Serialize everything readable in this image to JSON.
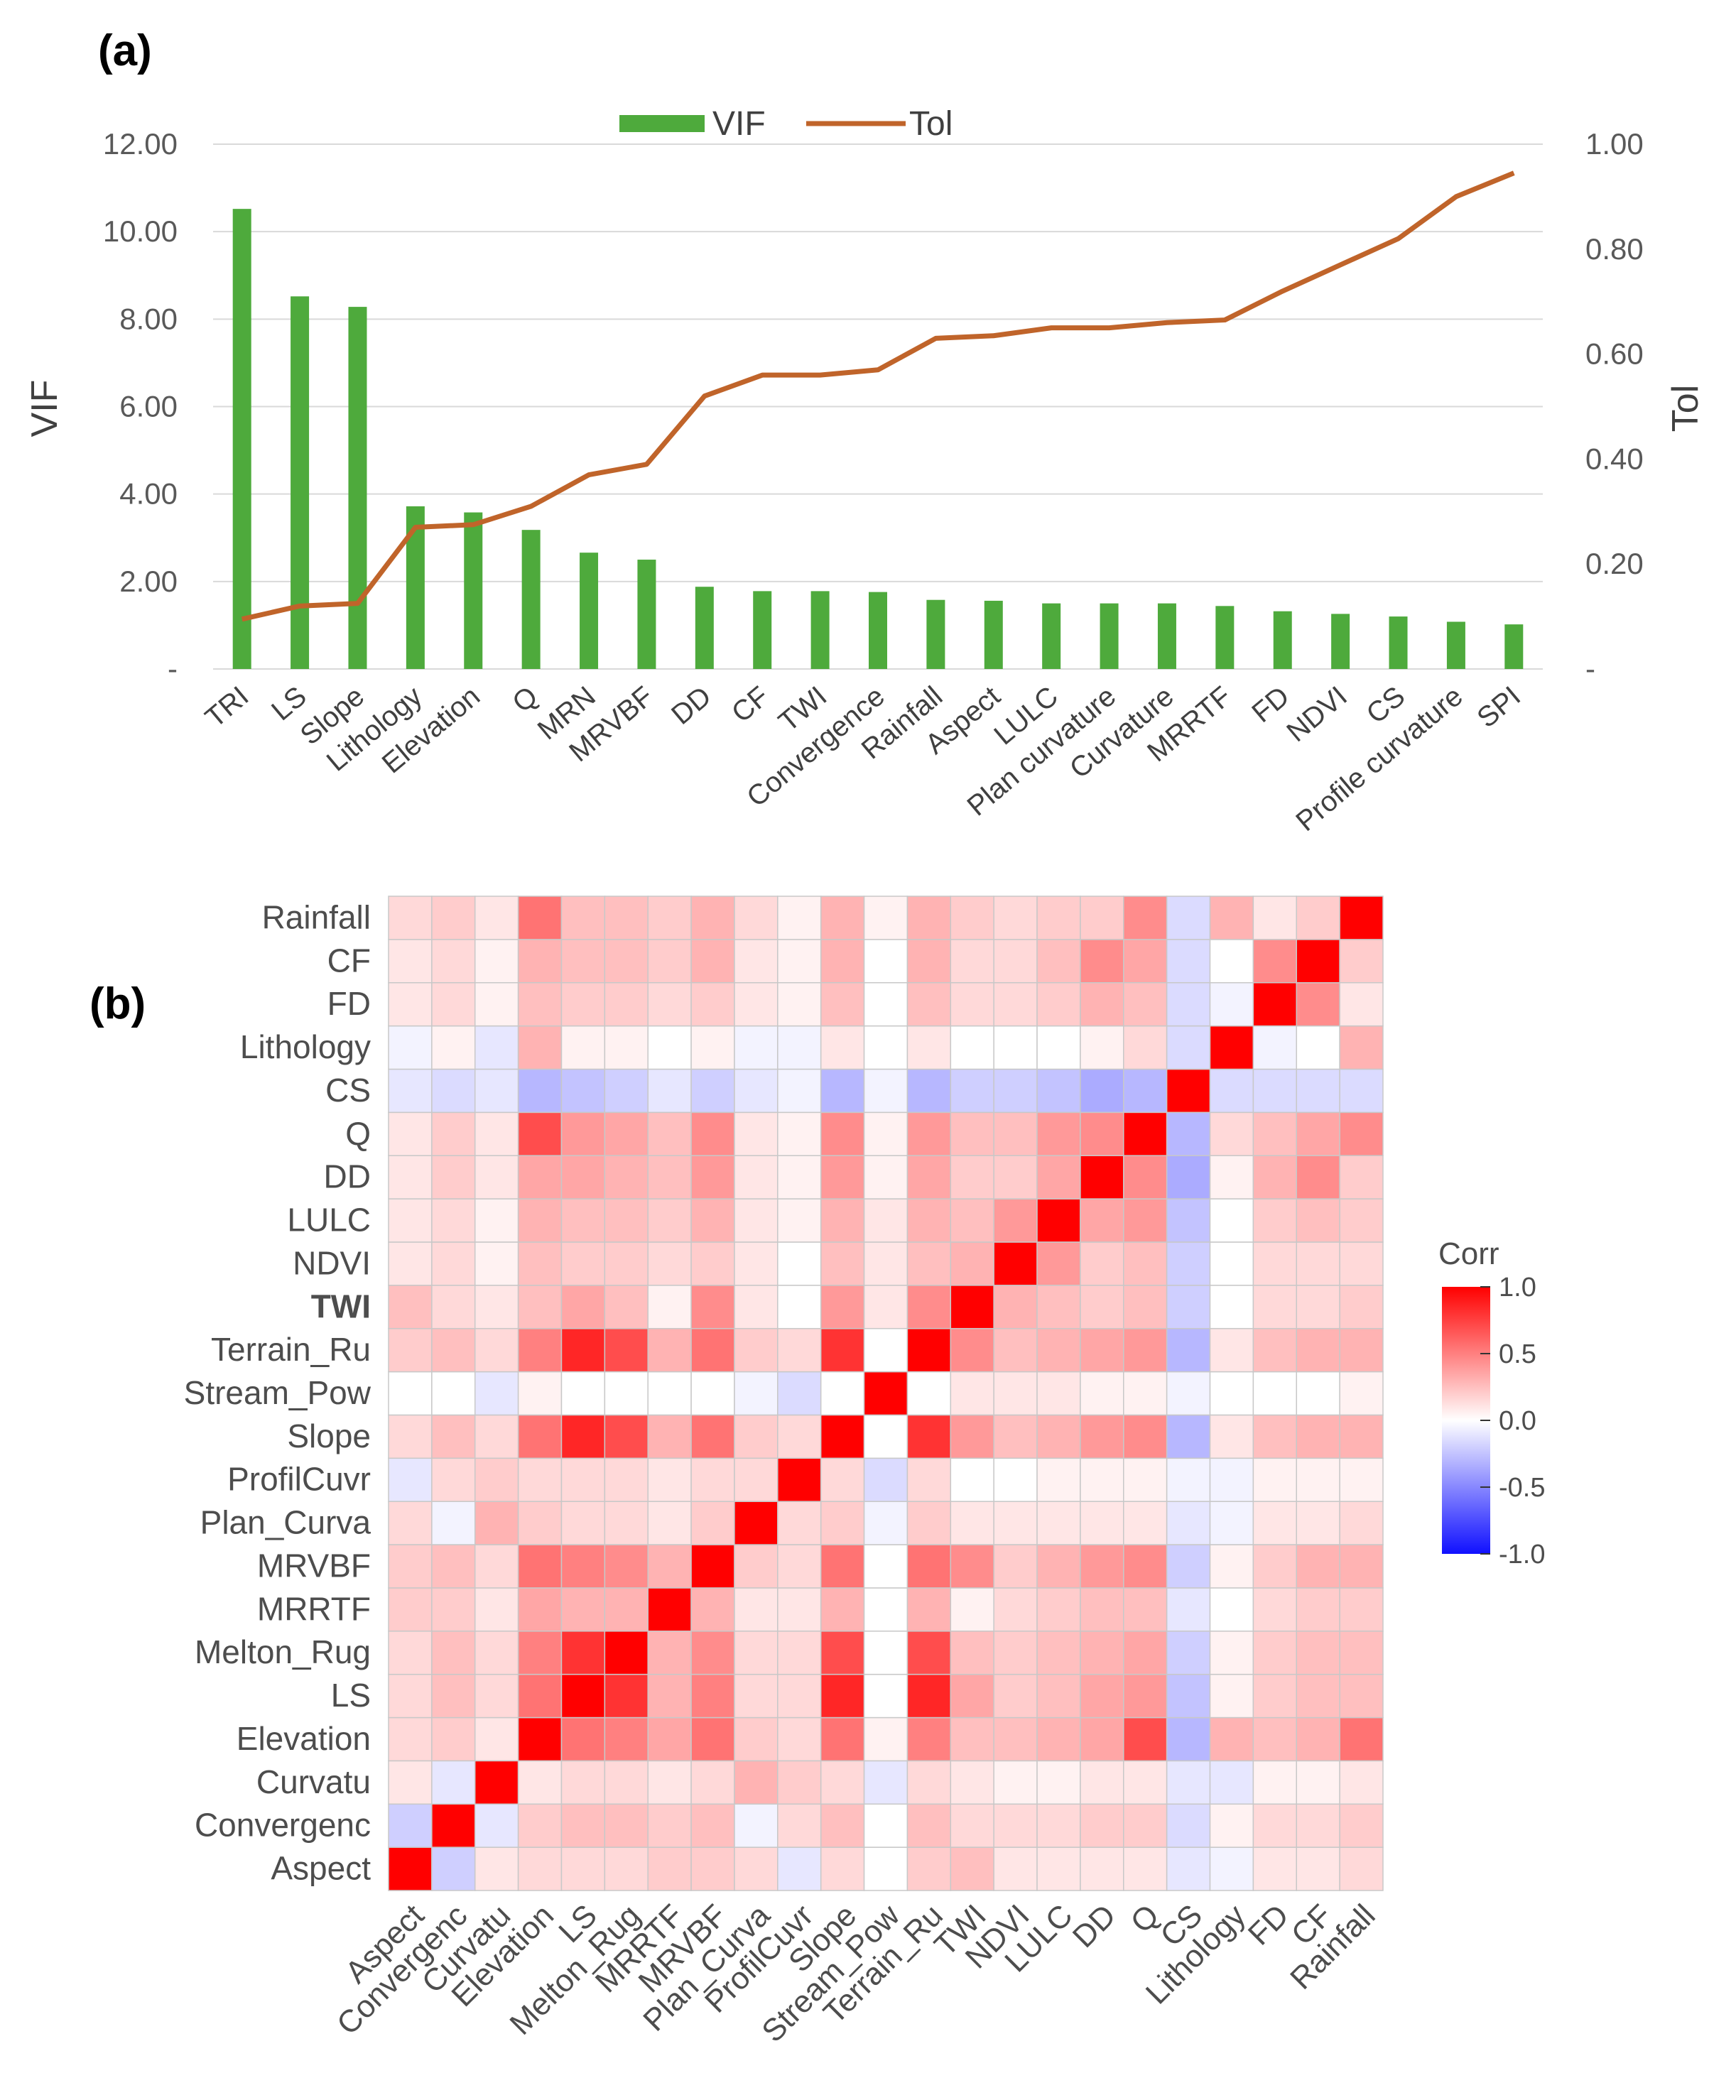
{
  "chart_data": [
    {
      "panel": "(a)",
      "type": "bar",
      "categories": [
        "TRI",
        "LS",
        "Slope",
        "Lithology",
        "Elevation",
        "Q",
        "MRN",
        "MRVBF",
        "DD",
        "CF",
        "TWI",
        "Convergence",
        "Rainfall",
        "Aspect",
        "LULC",
        "Plan curvature",
        "Curvature",
        "MRRTF",
        "FD",
        "NDVI",
        "CS",
        "Profile curvature",
        "SPI"
      ],
      "series": [
        {
          "name": "VIF",
          "axis": "left",
          "type": "bar",
          "color": "#4eaa3c",
          "values": [
            10.52,
            8.52,
            8.28,
            3.72,
            3.58,
            3.18,
            2.66,
            2.5,
            1.88,
            1.78,
            1.78,
            1.76,
            1.58,
            1.56,
            1.5,
            1.5,
            1.5,
            1.44,
            1.32,
            1.26,
            1.2,
            1.08,
            1.02
          ]
        },
        {
          "name": "Tol",
          "axis": "right",
          "type": "line",
          "color": "#c0642a",
          "values": [
            0.095,
            0.12,
            0.125,
            0.27,
            0.275,
            0.31,
            0.37,
            0.39,
            0.52,
            0.56,
            0.56,
            0.57,
            0.63,
            0.635,
            0.65,
            0.65,
            0.66,
            0.665,
            0.72,
            0.77,
            0.82,
            0.9,
            0.945
          ]
        }
      ],
      "ylabel": "VIF",
      "y2label": "Tol",
      "ylim": [
        0,
        12
      ],
      "y2lim": [
        0,
        1
      ],
      "yticks": [
        "-",
        "2.00",
        "4.00",
        "6.00",
        "8.00",
        "10.00",
        "12.00"
      ],
      "y2ticks": [
        "-",
        "0.20",
        "0.40",
        "0.60",
        "0.80",
        "1.00"
      ],
      "legend": [
        "VIF",
        "Tol"
      ],
      "legend_position": "top-center",
      "grid": true
    },
    {
      "panel": "(b)",
      "type": "heatmap",
      "variables": [
        "Aspect",
        "Convergenc",
        "Curvatu",
        "Elevation",
        "LS",
        "Melton_Rug",
        "MRRTF",
        "MRVBF",
        "Plan_Curva",
        "ProfilCuvr",
        "Slope",
        "Stream_Pow",
        "Terrain_Ru",
        "TWI",
        "NDVI",
        "LULC",
        "DD",
        "Q",
        "CS",
        "Lithology",
        "FD",
        "CF",
        "Rainfall"
      ],
      "matrix": [
        [
          1.0,
          -0.2,
          0.1,
          0.15,
          0.15,
          0.15,
          0.2,
          0.2,
          0.15,
          -0.1,
          0.15,
          0.0,
          0.2,
          0.25,
          0.1,
          0.1,
          0.1,
          0.1,
          -0.1,
          -0.05,
          0.1,
          0.1,
          0.15
        ],
        [
          -0.2,
          1.0,
          -0.1,
          0.2,
          0.25,
          0.25,
          0.2,
          0.25,
          -0.05,
          0.15,
          0.25,
          0.0,
          0.25,
          0.15,
          0.15,
          0.15,
          0.2,
          0.2,
          -0.15,
          0.05,
          0.15,
          0.15,
          0.2
        ],
        [
          0.1,
          -0.1,
          1.0,
          0.1,
          0.15,
          0.15,
          0.1,
          0.15,
          0.3,
          0.2,
          0.15,
          -0.1,
          0.15,
          0.1,
          0.05,
          0.05,
          0.1,
          0.1,
          -0.1,
          -0.1,
          0.05,
          0.05,
          0.1
        ],
        [
          0.15,
          0.2,
          0.1,
          1.0,
          0.55,
          0.5,
          0.35,
          0.55,
          0.2,
          0.15,
          0.55,
          0.05,
          0.5,
          0.25,
          0.25,
          0.3,
          0.35,
          0.7,
          -0.3,
          0.3,
          0.25,
          0.3,
          0.55
        ],
        [
          0.15,
          0.25,
          0.15,
          0.55,
          1.0,
          0.8,
          0.3,
          0.5,
          0.15,
          0.15,
          0.85,
          0.0,
          0.85,
          0.35,
          0.2,
          0.25,
          0.35,
          0.4,
          -0.25,
          0.05,
          0.2,
          0.25,
          0.25
        ],
        [
          0.15,
          0.25,
          0.15,
          0.5,
          0.8,
          1.0,
          0.3,
          0.45,
          0.15,
          0.15,
          0.7,
          0.0,
          0.7,
          0.25,
          0.2,
          0.25,
          0.3,
          0.35,
          -0.2,
          0.05,
          0.2,
          0.25,
          0.25
        ],
        [
          0.2,
          0.2,
          0.1,
          0.35,
          0.3,
          0.3,
          1.0,
          0.3,
          0.1,
          0.1,
          0.3,
          0.0,
          0.3,
          0.05,
          0.15,
          0.2,
          0.25,
          0.25,
          -0.1,
          0.0,
          0.15,
          0.2,
          0.2
        ],
        [
          0.2,
          0.25,
          0.15,
          0.55,
          0.5,
          0.45,
          0.3,
          1.0,
          0.2,
          0.15,
          0.55,
          0.0,
          0.55,
          0.45,
          0.2,
          0.3,
          0.4,
          0.45,
          -0.2,
          0.05,
          0.2,
          0.3,
          0.3
        ],
        [
          0.15,
          -0.05,
          0.3,
          0.2,
          0.15,
          0.15,
          0.1,
          0.2,
          1.0,
          0.15,
          0.2,
          -0.05,
          0.2,
          0.1,
          0.1,
          0.1,
          0.1,
          0.1,
          -0.1,
          -0.05,
          0.1,
          0.1,
          0.15
        ],
        [
          -0.1,
          0.15,
          0.2,
          0.15,
          0.15,
          0.15,
          0.1,
          0.15,
          0.15,
          1.0,
          0.15,
          -0.15,
          0.15,
          0.0,
          0.0,
          0.05,
          0.05,
          0.05,
          -0.05,
          -0.05,
          0.05,
          0.05,
          0.05
        ],
        [
          0.15,
          0.25,
          0.15,
          0.55,
          0.85,
          0.7,
          0.3,
          0.55,
          0.2,
          0.15,
          1.0,
          0.0,
          0.8,
          0.4,
          0.25,
          0.3,
          0.4,
          0.45,
          -0.3,
          0.1,
          0.25,
          0.3,
          0.3
        ],
        [
          0.0,
          0.0,
          -0.1,
          0.05,
          0.0,
          0.0,
          0.0,
          0.0,
          -0.05,
          -0.15,
          0.0,
          1.0,
          0.0,
          0.1,
          0.1,
          0.1,
          0.05,
          0.05,
          -0.05,
          0.0,
          0.0,
          0.0,
          0.05
        ],
        [
          0.2,
          0.25,
          0.15,
          0.5,
          0.85,
          0.7,
          0.3,
          0.55,
          0.2,
          0.15,
          0.8,
          0.0,
          1.0,
          0.45,
          0.25,
          0.3,
          0.35,
          0.4,
          -0.3,
          0.1,
          0.25,
          0.3,
          0.3
        ],
        [
          0.25,
          0.15,
          0.1,
          0.25,
          0.35,
          0.25,
          0.05,
          0.45,
          0.1,
          0.0,
          0.4,
          0.1,
          0.45,
          1.0,
          0.3,
          0.25,
          0.2,
          0.25,
          -0.2,
          0.0,
          0.15,
          0.15,
          0.2
        ],
        [
          0.1,
          0.15,
          0.05,
          0.25,
          0.2,
          0.2,
          0.15,
          0.2,
          0.1,
          0.0,
          0.25,
          0.1,
          0.25,
          0.3,
          1.0,
          0.4,
          0.2,
          0.25,
          -0.2,
          0.0,
          0.15,
          0.15,
          0.15
        ],
        [
          0.1,
          0.15,
          0.05,
          0.3,
          0.25,
          0.25,
          0.2,
          0.3,
          0.1,
          0.05,
          0.3,
          0.1,
          0.3,
          0.25,
          0.4,
          1.0,
          0.35,
          0.4,
          -0.25,
          0.0,
          0.2,
          0.25,
          0.2
        ],
        [
          0.1,
          0.2,
          0.1,
          0.35,
          0.35,
          0.3,
          0.25,
          0.4,
          0.1,
          0.05,
          0.4,
          0.05,
          0.35,
          0.2,
          0.2,
          0.35,
          1.0,
          0.45,
          -0.35,
          0.05,
          0.3,
          0.45,
          0.2
        ],
        [
          0.1,
          0.2,
          0.1,
          0.7,
          0.4,
          0.35,
          0.25,
          0.45,
          0.1,
          0.05,
          0.45,
          0.05,
          0.4,
          0.25,
          0.25,
          0.4,
          0.45,
          1.0,
          -0.3,
          0.15,
          0.25,
          0.35,
          0.45
        ],
        [
          -0.1,
          -0.15,
          -0.1,
          -0.3,
          -0.25,
          -0.2,
          -0.1,
          -0.2,
          -0.1,
          -0.05,
          -0.3,
          -0.05,
          -0.3,
          -0.2,
          -0.2,
          -0.25,
          -0.35,
          -0.3,
          1.0,
          -0.15,
          -0.15,
          -0.15,
          -0.15
        ],
        [
          -0.05,
          0.05,
          -0.1,
          0.3,
          0.05,
          0.05,
          0.0,
          0.05,
          -0.05,
          -0.05,
          0.1,
          0.0,
          0.1,
          0.0,
          0.0,
          0.0,
          0.05,
          0.15,
          -0.15,
          1.0,
          -0.05,
          0.0,
          0.3
        ],
        [
          0.1,
          0.15,
          0.05,
          0.25,
          0.2,
          0.2,
          0.15,
          0.2,
          0.1,
          0.05,
          0.25,
          0.0,
          0.25,
          0.15,
          0.15,
          0.2,
          0.3,
          0.25,
          -0.15,
          -0.05,
          1.0,
          0.45,
          0.1
        ],
        [
          0.1,
          0.15,
          0.05,
          0.3,
          0.25,
          0.25,
          0.2,
          0.3,
          0.1,
          0.05,
          0.3,
          0.0,
          0.3,
          0.15,
          0.15,
          0.25,
          0.45,
          0.35,
          -0.15,
          0.0,
          0.45,
          1.0,
          0.2
        ],
        [
          0.15,
          0.2,
          0.1,
          0.55,
          0.25,
          0.25,
          0.2,
          0.3,
          0.15,
          0.05,
          0.3,
          0.05,
          0.3,
          0.2,
          0.15,
          0.2,
          0.2,
          0.45,
          -0.15,
          0.3,
          0.1,
          0.2,
          1.0
        ]
      ],
      "legend_title": "Corr",
      "colorbar_ticks": [
        "1.0",
        "0.5",
        "0.0",
        "-0.5",
        "-1.0"
      ],
      "colorscale": {
        "low": "#1010ff",
        "mid": "#ffffff",
        "high": "#ff0000"
      },
      "range": [
        -1,
        1
      ]
    }
  ],
  "panel_labels": {
    "a": "(a)",
    "b": "(b)"
  }
}
